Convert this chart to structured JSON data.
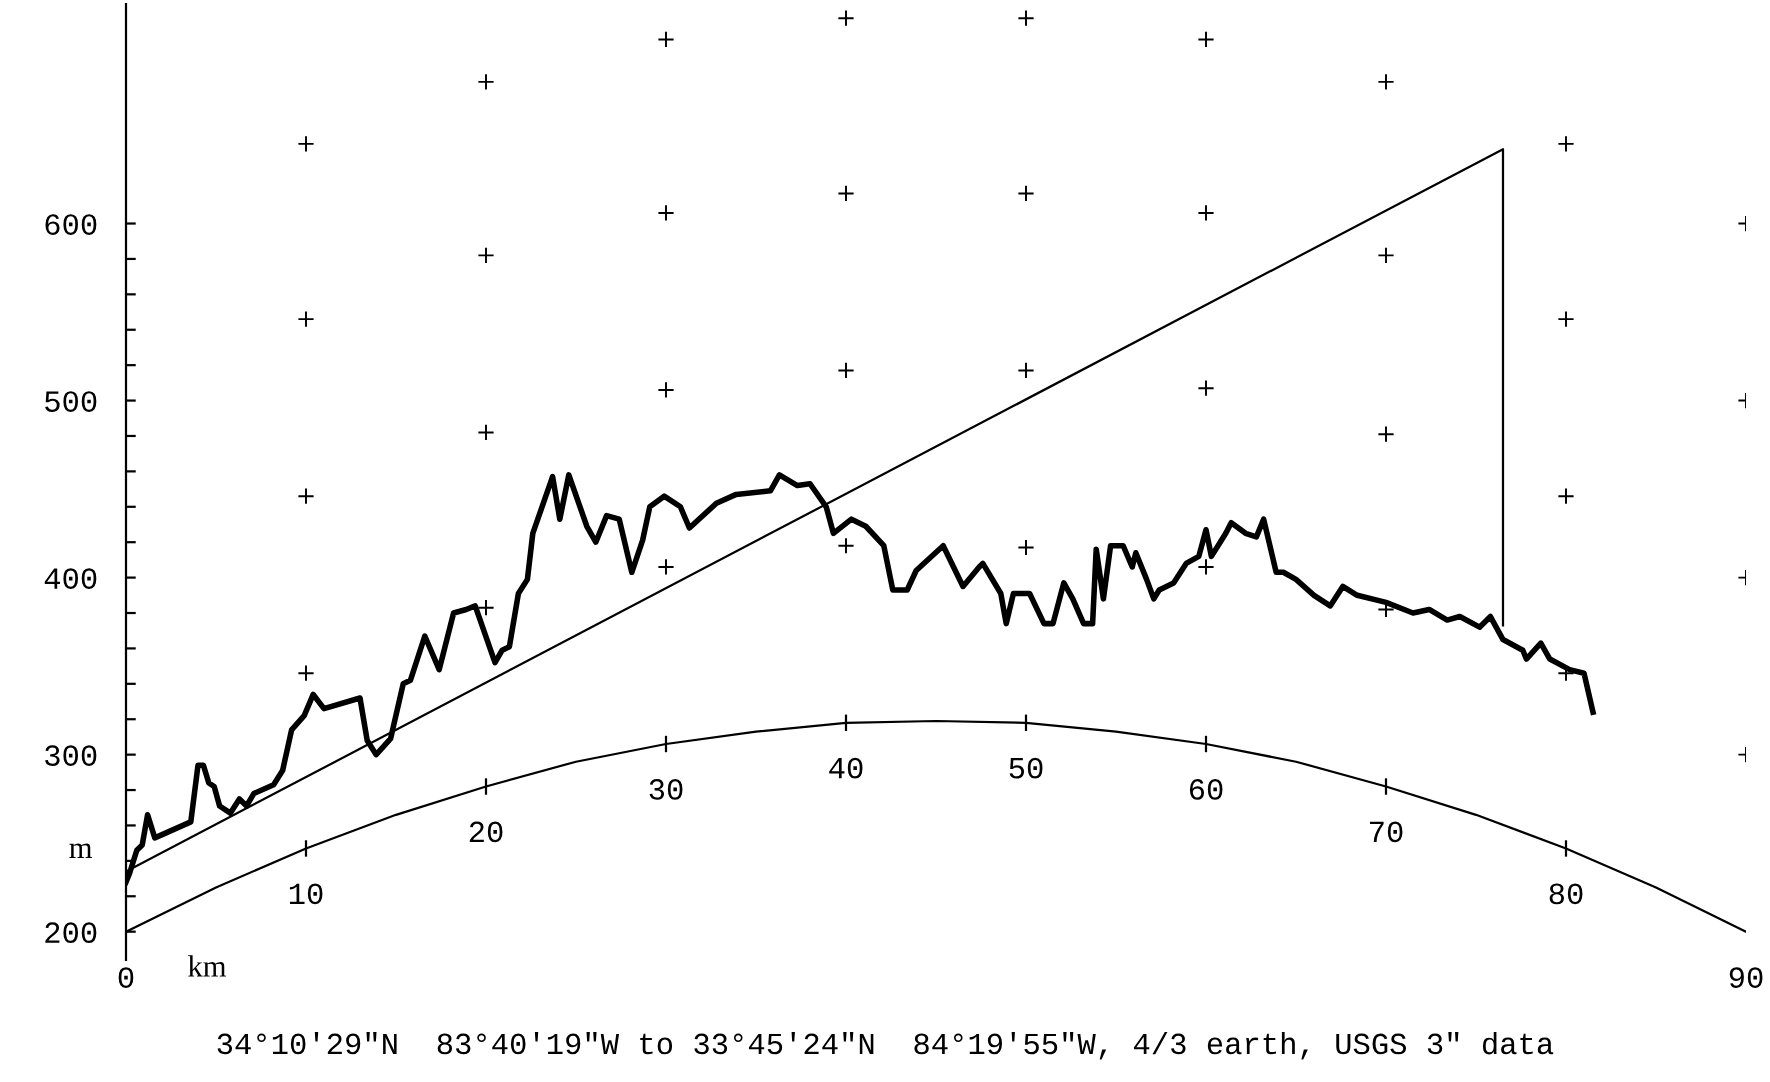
{
  "chart_data": {
    "type": "line",
    "xlabel": "km",
    "ylabel": "m",
    "xlim": [
      0,
      90
    ],
    "xticks": [
      0,
      90
    ],
    "ylim": [
      184,
      724
    ],
    "yticks": [
      200,
      {
        "value": 220,
        "label": null
      },
      {
        "value": 240,
        "label": null
      },
      {
        "value": 260,
        "label": null
      },
      {
        "value": 280,
        "label": null
      },
      300,
      {
        "value": 320,
        "label": null
      },
      {
        "value": 340,
        "label": null
      },
      {
        "value": 360,
        "label": null
      },
      {
        "value": 380,
        "label": null
      },
      400,
      {
        "value": 420,
        "label": null
      },
      {
        "value": 440,
        "label": null
      },
      {
        "value": 460,
        "label": null
      },
      {
        "value": 480,
        "label": null
      },
      500,
      {
        "value": 520,
        "label": null
      },
      {
        "value": 540,
        "label": null
      },
      {
        "value": 560,
        "label": null
      },
      {
        "value": 580,
        "label": null
      },
      600
    ],
    "grid": false,
    "legend": false,
    "marker": "none",
    "line_style": "solid",
    "series": [
      {
        "color": "#000000",
        "x": [
          0,
          0.2,
          0.6,
          0.9,
          1.2,
          1.6,
          3.6,
          4.0,
          4.3,
          4.6,
          4.9,
          5.2,
          5.8,
          6.3,
          6.7,
          7.1,
          8.2,
          8.7,
          9.2,
          9.9,
          10.4,
          11.0,
          13.0,
          13.4,
          13.9,
          14.7,
          15.4,
          15.8,
          16.6,
          17.4,
          18.2,
          18.9,
          19.4,
          20.5,
          20.9,
          21.3,
          21.8,
          22.3,
          22.6,
          23.7,
          24.1,
          24.6,
          25.6,
          26.1,
          26.7,
          27.4,
          28.1,
          28.7,
          29.1,
          29.9,
          30.8,
          31.3,
          32.8,
          33.9,
          35.8,
          36.3,
          37.3,
          38.0,
          38.9,
          39.3,
          40.3,
          41.1,
          42.1,
          42.6,
          43.4,
          43.9,
          45.4,
          46.5,
          47.4,
          47.6,
          48.6,
          48.9,
          49.3,
          50.2,
          51.0,
          51.5,
          52.1,
          52.6,
          53.2,
          53.7,
          53.9,
          54.3,
          54.7,
          55.4,
          55.9,
          56.1,
          56.7,
          57.1,
          57.4,
          58.2,
          58.9,
          59.6,
          60.0,
          60.3,
          61.1,
          61.4,
          62.2,
          62.8,
          63.2,
          63.9,
          64.3,
          65.0,
          66.0,
          66.9,
          67.6,
          68.4,
          70.0,
          71.5,
          72.4,
          73.4,
          74.1,
          75.2,
          75.8,
          76.5,
          77.6,
          77.8,
          78.6,
          79.1,
          80.2,
          81.0,
          81.5
        ],
        "values": [
          228,
          233,
          246,
          249,
          266,
          253,
          262,
          294,
          294,
          284,
          282,
          271,
          267,
          275,
          271,
          278,
          283,
          291,
          314,
          322,
          334,
          326,
          332,
          308,
          300,
          309,
          340,
          342,
          367,
          348,
          380,
          382,
          384,
          352,
          359,
          361,
          391,
          399,
          425,
          457,
          433,
          458,
          429,
          420,
          435,
          433,
          403,
          421,
          440,
          446,
          440,
          428,
          442,
          447,
          449,
          458,
          452,
          453,
          440,
          425,
          433,
          429,
          418,
          393,
          393,
          404,
          418,
          395,
          406,
          408,
          391,
          374,
          391,
          391,
          374,
          374,
          397,
          388,
          374,
          374,
          416,
          388,
          418,
          418,
          406,
          414,
          399,
          388,
          393,
          397,
          408,
          412,
          427,
          412,
          425,
          431,
          425,
          423,
          433,
          403,
          403,
          399,
          390,
          384,
          395,
          390,
          386,
          380,
          382,
          376,
          378,
          372,
          378,
          365,
          359,
          354,
          363,
          354,
          348,
          346,
          324
        ]
      },
      {
        "color": "#000000",
        "x": [
          0,
          76.5,
          76.5
        ],
        "values": [
          234,
          642,
          373
        ]
      },
      {
        "color": "#000000",
        "x": [
          0,
          5,
          10,
          15,
          20,
          25,
          30,
          35,
          40,
          45,
          50,
          55,
          60,
          65,
          70,
          75,
          80,
          85,
          90
        ],
        "values": [
          200,
          225,
          247,
          266,
          282,
          296,
          306,
          313,
          318,
          319,
          318,
          313,
          306,
          296,
          282,
          266,
          247,
          225,
          200
        ]
      },
      {
        "type": "scatter",
        "color": "#000000",
        "marker": "cross",
        "x": [
          10,
          10,
          10,
          10,
          20,
          20,
          20,
          20,
          30,
          30,
          30,
          30,
          40,
          40,
          40,
          40,
          50,
          50,
          50,
          50,
          60,
          60,
          60,
          60,
          70,
          70,
          70,
          70,
          80,
          80,
          80,
          80,
          90,
          90,
          90,
          90
        ],
        "values": [
          645,
          546,
          446,
          346,
          680,
          582,
          482,
          383,
          704,
          606,
          506,
          406,
          716,
          617,
          517,
          418,
          716,
          617,
          517,
          417,
          704,
          606,
          507,
          406,
          680,
          582,
          481,
          382,
          645,
          546,
          446,
          346,
          600,
          500,
          400,
          300
        ]
      }
    ],
    "annotations": [
      "10",
      "20",
      "30",
      "40",
      "50",
      "60",
      "70",
      "80",
      "34°10′29″N  83°40′19″W to 33°45′24″N  84°19′55″W, 4/3 earth, USGS 3″ data"
    ]
  }
}
